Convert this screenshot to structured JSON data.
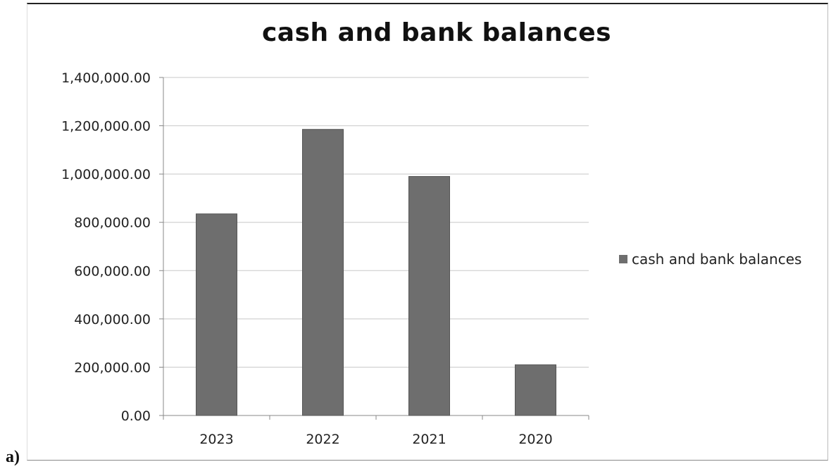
{
  "panel_label": "a)",
  "chart_data": {
    "type": "bar",
    "title": "cash and bank balances",
    "xlabel": "",
    "ylabel": "",
    "categories": [
      "2023",
      "2022",
      "2021",
      "2020"
    ],
    "series": [
      {
        "name": "cash and bank balances",
        "values": [
          835000,
          1185000,
          990000,
          210000
        ],
        "color": "#6e6e6e"
      }
    ],
    "ylim": [
      0,
      1400000
    ],
    "yticks": [
      0,
      200000,
      400000,
      600000,
      800000,
      1000000,
      1200000,
      1400000
    ],
    "ytick_labels": [
      "0.00",
      "200,000.00",
      "400,000.00",
      "600,000.00",
      "800,000.00",
      "1,000,000.00",
      "1,200,000.00",
      "1,400,000.00"
    ],
    "grid": true,
    "legend": "right"
  }
}
